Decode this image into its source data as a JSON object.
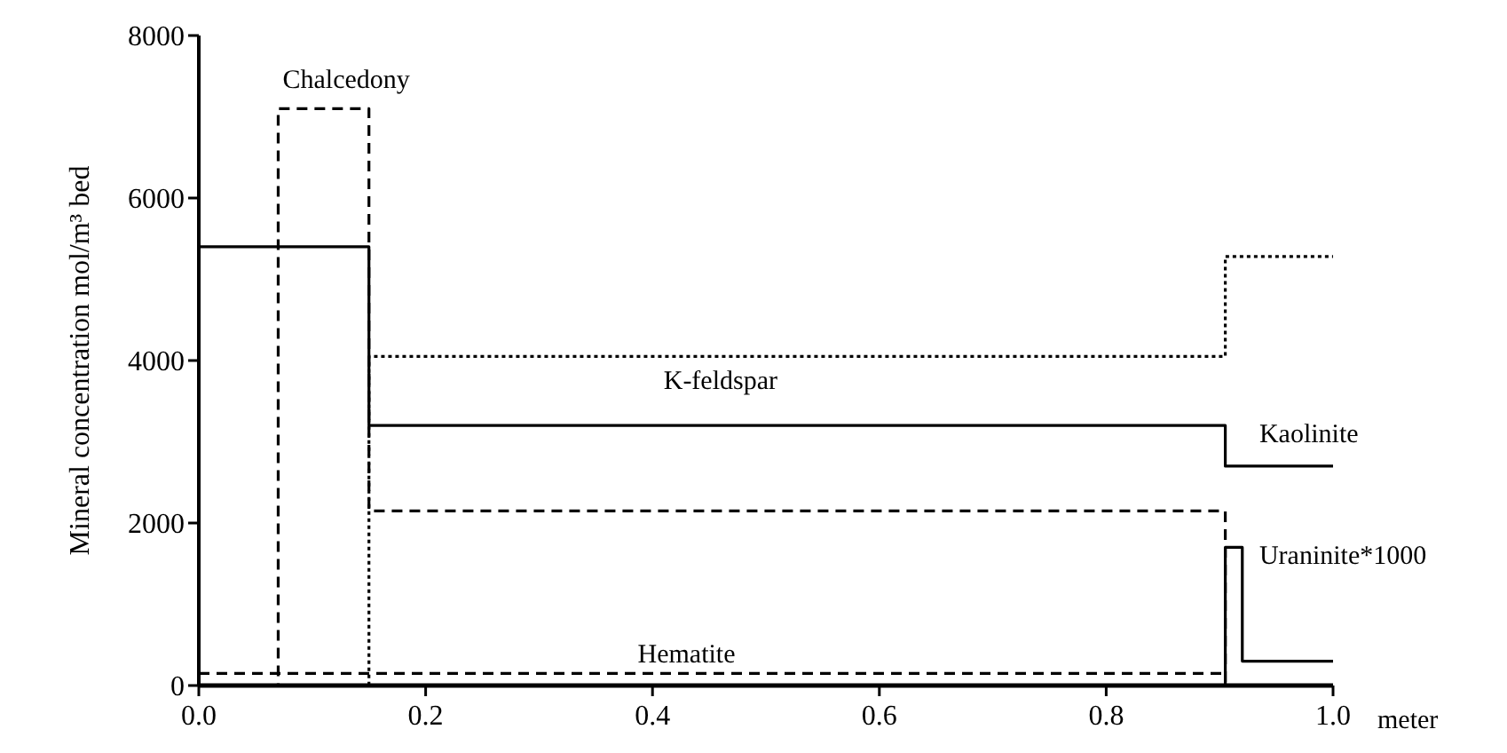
{
  "chart_data": {
    "type": "step",
    "xlabel": "meter",
    "ylabel": "Mineral concentration mol/m³ bed",
    "xlim": [
      0,
      1.0
    ],
    "ylim": [
      0,
      8000
    ],
    "xticks": [
      {
        "value": 0,
        "label": "0.0"
      },
      {
        "value": 0.2,
        "label": "0.2"
      },
      {
        "value": 0.4,
        "label": "0.4"
      },
      {
        "value": 0.6,
        "label": "0.6"
      },
      {
        "value": 0.8,
        "label": "0.8"
      },
      {
        "value": 1.0,
        "label": "1.0"
      }
    ],
    "yticks": [
      0,
      2000,
      4000,
      6000,
      8000
    ],
    "grid": false,
    "series": [
      {
        "name": "Chalcedony",
        "color": "#000000",
        "line_style": "dashed",
        "x": [
          0,
          0.07,
          0.15,
          0.905,
          1.0
        ],
        "values": [
          0,
          7100,
          2150,
          0,
          0
        ]
      },
      {
        "name": "K-feldspar",
        "color": "#000000",
        "line_style": "dotted",
        "x": [
          0,
          0.15,
          0.905,
          1.0
        ],
        "values": [
          0,
          4050,
          5280,
          5280
        ]
      },
      {
        "name": "Kaolinite",
        "color": "#000000",
        "line_style": "solid",
        "x": [
          0,
          0.15,
          0.905,
          1.0
        ],
        "values": [
          5400,
          3200,
          2700,
          2700
        ]
      },
      {
        "name": "Uraninite*1000",
        "color": "#000000",
        "line_style": "solid",
        "x": [
          0,
          0.905,
          0.92,
          1.0
        ],
        "values": [
          0,
          1700,
          300,
          300
        ]
      },
      {
        "name": "Hematite",
        "color": "#000000",
        "line_style": "dashed",
        "x": [
          0,
          0.905
        ],
        "values": [
          150,
          150
        ]
      }
    ]
  }
}
